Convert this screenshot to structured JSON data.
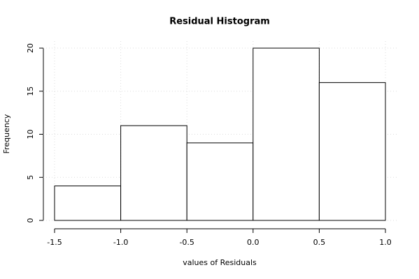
{
  "chart_data": {
    "type": "histogram",
    "title": "Residual Histogram",
    "x_label": "values of Residuals",
    "y_label": "Frequency",
    "bins": [
      -1.5,
      -1,
      -0.5,
      0,
      0.5,
      1
    ],
    "values": [
      4,
      11,
      9,
      20,
      16
    ],
    "color": "#ffffff",
    "xlim": [
      -1.5,
      1
    ],
    "xticks": [
      -1.5,
      {
        "value": -1,
        "label": "-1.0"
      },
      -0.5,
      {
        "value": 0,
        "label": "0.0"
      },
      0.5,
      {
        "value": 1,
        "label": "1.0"
      }
    ],
    "ylim": [
      0,
      20
    ],
    "yticks": [
      0,
      5,
      10,
      15,
      20
    ],
    "grid": true
  }
}
